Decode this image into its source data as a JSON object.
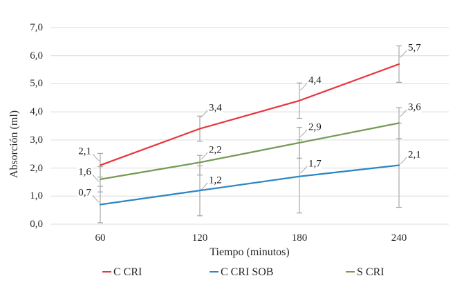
{
  "chart_data": {
    "type": "line",
    "title": "",
    "xlabel": "Tiempo (minutos)",
    "ylabel": "Absorción (ml)",
    "x": [
      60,
      120,
      180,
      240
    ],
    "x_tick_labels": [
      "60",
      "120",
      "180",
      "240"
    ],
    "y_ticks": [
      0,
      1,
      2,
      3,
      4,
      5,
      6,
      7
    ],
    "y_tick_labels": [
      "0,0",
      "1,0",
      "2,0",
      "3,0",
      "4,0",
      "5,0",
      "6,0",
      "7,0"
    ],
    "ylim": [
      0,
      7
    ],
    "grid": "horizontal",
    "decimal_separator": ",",
    "legend_position": "bottom",
    "series": [
      {
        "name": "C CRI",
        "color": "#e8383d",
        "values": [
          2.1,
          3.4,
          4.4,
          5.7
        ],
        "labels": [
          "2,1",
          "3,4",
          "4,4",
          "5,7"
        ],
        "error_lo": [
          1.68,
          2.95,
          3.77,
          5.05
        ],
        "error_hi": [
          2.52,
          3.85,
          5.03,
          6.35
        ]
      },
      {
        "name": "C CRI SOB",
        "color": "#2e86c5",
        "values": [
          0.7,
          1.2,
          1.7,
          2.1
        ],
        "labels": [
          "0,7",
          "1,2",
          "1,7",
          "2,1"
        ],
        "error_lo": [
          0.05,
          0.3,
          0.4,
          0.6
        ],
        "error_hi": [
          1.35,
          2.08,
          3.0,
          3.6
        ]
      },
      {
        "name": "S CRI",
        "color": "#769b54",
        "values": [
          1.6,
          2.2,
          2.9,
          3.6
        ],
        "labels": [
          "1,6",
          "2,2",
          "2,9",
          "3,6"
        ],
        "error_lo": [
          1.15,
          1.75,
          2.35,
          3.05
        ],
        "error_hi": [
          2.05,
          2.45,
          3.45,
          4.15
        ]
      }
    ],
    "colors": {
      "gridline": "#dcdcdc",
      "error_bar": "#a6a6a6",
      "leader_line": "#a6a6a6",
      "axis_text": "#262626",
      "label_text": "#1a1a1a"
    }
  }
}
